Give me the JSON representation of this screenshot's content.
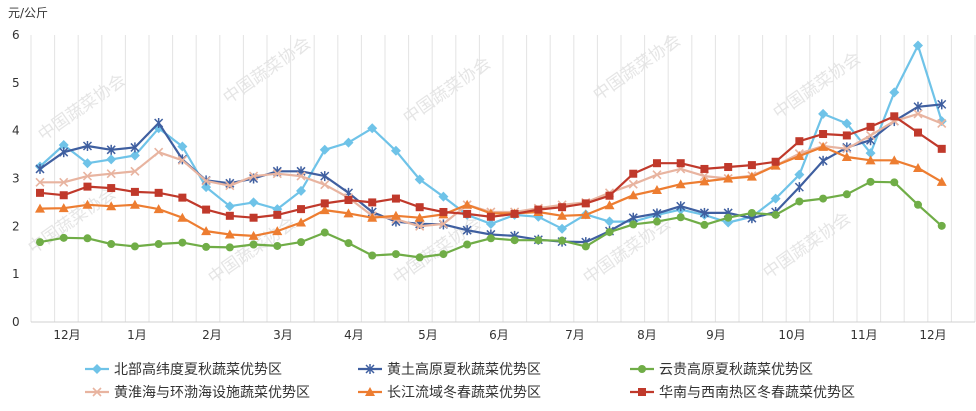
{
  "chart_data": {
    "type": "line",
    "y_unit_label": "元/公斤",
    "ylim": [
      0,
      6
    ],
    "y_ticks": [
      "0",
      "1",
      "2",
      "3",
      "4",
      "5",
      "6"
    ],
    "grid": "vertical",
    "legend_position": "bottom",
    "watermark": "中国蔬菜协会",
    "x_month_labels": [
      "12月",
      "1月",
      "2月",
      "3月",
      "4月",
      "5月",
      "6月",
      "7月",
      "8月",
      "9月",
      "10月",
      "11月",
      "12月"
    ],
    "series": [
      {
        "name": "北部高纬度夏秋蔬菜优势区",
        "color": "#6fc3e8",
        "marker": "diamond",
        "values": [
          3.25,
          3.7,
          3.32,
          3.4,
          3.48,
          4.05,
          3.67,
          2.82,
          2.42,
          2.5,
          2.36,
          2.74,
          3.6,
          3.75,
          4.05,
          3.58,
          2.98,
          2.62,
          2.24,
          2.05,
          2.24,
          2.2,
          1.95,
          2.25,
          2.1,
          2.1,
          2.24,
          2.35,
          2.24,
          2.08,
          2.2,
          2.58,
          3.08,
          4.35,
          4.15,
          3.53,
          4.8,
          5.78,
          4.2
        ]
      },
      {
        "name": "黄土高原夏秋蔬菜优势区",
        "color": "#3f5fa0",
        "marker": "star",
        "values": [
          3.2,
          3.55,
          3.68,
          3.6,
          3.65,
          4.16,
          3.4,
          2.96,
          2.9,
          3.0,
          3.15,
          3.15,
          3.05,
          2.7,
          2.3,
          2.1,
          2.05,
          2.04,
          1.92,
          1.83,
          1.8,
          1.72,
          1.68,
          1.67,
          1.9,
          2.18,
          2.27,
          2.42,
          2.28,
          2.28,
          2.17,
          2.3,
          2.82,
          3.37,
          3.65,
          3.8,
          4.2,
          4.5,
          4.55
        ]
      },
      {
        "name": "云贵高原夏秋蔬菜优势区",
        "color": "#70ad47",
        "marker": "circle",
        "values": [
          1.67,
          1.76,
          1.75,
          1.63,
          1.58,
          1.63,
          1.66,
          1.57,
          1.56,
          1.62,
          1.59,
          1.67,
          1.87,
          1.65,
          1.39,
          1.42,
          1.35,
          1.42,
          1.62,
          1.75,
          1.71,
          1.71,
          1.7,
          1.58,
          1.88,
          2.04,
          2.1,
          2.19,
          2.03,
          2.18,
          2.28,
          2.24,
          2.52,
          2.58,
          2.67,
          2.93,
          2.92,
          2.45,
          2.01
        ]
      },
      {
        "name": "黄淮海与环渤海设施蔬菜优势区",
        "color": "#e8b4a0",
        "marker": "x",
        "values": [
          2.92,
          2.92,
          3.05,
          3.1,
          3.15,
          3.55,
          3.38,
          2.95,
          2.85,
          3.05,
          3.1,
          3.05,
          2.87,
          2.6,
          2.22,
          2.15,
          2.0,
          2.05,
          2.45,
          2.3,
          2.3,
          2.38,
          2.45,
          2.5,
          2.7,
          2.88,
          3.08,
          3.2,
          3.05,
          3.0,
          3.06,
          3.27,
          3.52,
          3.68,
          3.62,
          3.9,
          4.2,
          4.35,
          4.15
        ]
      },
      {
        "name": "长江流域冬春蔬菜优势区",
        "color": "#ed7d31",
        "marker": "triangle",
        "values": [
          2.37,
          2.38,
          2.45,
          2.42,
          2.45,
          2.36,
          2.18,
          1.9,
          1.83,
          1.8,
          1.9,
          2.08,
          2.34,
          2.27,
          2.18,
          2.22,
          2.18,
          2.25,
          2.45,
          2.27,
          2.27,
          2.3,
          2.22,
          2.24,
          2.44,
          2.65,
          2.76,
          2.88,
          2.94,
          3.0,
          3.04,
          3.27,
          3.47,
          3.66,
          3.45,
          3.38,
          3.38,
          3.22,
          2.93
        ]
      },
      {
        "name": "华南与西南热区冬春蔬菜优势区",
        "color": "#c0392b",
        "marker": "square",
        "values": [
          2.7,
          2.65,
          2.83,
          2.8,
          2.72,
          2.7,
          2.6,
          2.35,
          2.22,
          2.18,
          2.24,
          2.36,
          2.48,
          2.55,
          2.5,
          2.58,
          2.4,
          2.3,
          2.26,
          2.2,
          2.26,
          2.35,
          2.4,
          2.48,
          2.64,
          3.1,
          3.32,
          3.32,
          3.2,
          3.24,
          3.28,
          3.35,
          3.78,
          3.93,
          3.9,
          4.08,
          4.3,
          3.96,
          3.62
        ]
      }
    ]
  }
}
